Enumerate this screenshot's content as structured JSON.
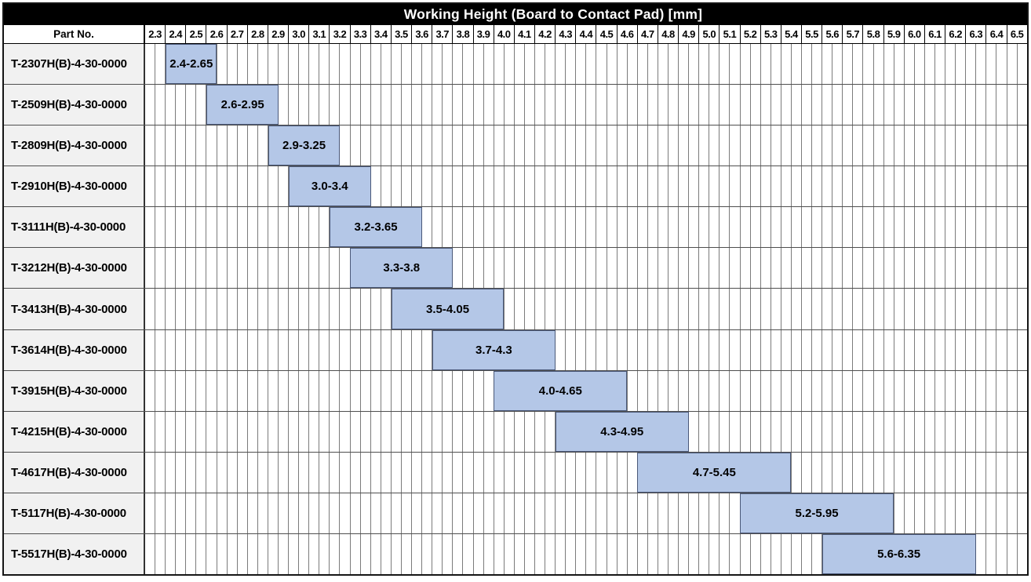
{
  "chart_data": {
    "type": "bar",
    "subtype": "horizontal-range-gantt",
    "title": "Working Height (Board to Contact Pad) [mm]",
    "part_no_header": "Part No.",
    "legend": "none",
    "grid": "on",
    "axis": {
      "unit": "mm",
      "min": 2.3,
      "max": 6.6,
      "major_step": 0.1,
      "minor_step": 0.05,
      "tick_labels": [
        "2.3",
        "2.4",
        "2.5",
        "2.6",
        "2.7",
        "2.8",
        "2.9",
        "3.0",
        "3.1",
        "3.2",
        "3.3",
        "3.4",
        "3.5",
        "3.6",
        "3.7",
        "3.8",
        "3.9",
        "4.0",
        "4.1",
        "4.2",
        "4.3",
        "4.4",
        "4.5",
        "4.6",
        "4.7",
        "4.8",
        "4.9",
        "5.0",
        "5.1",
        "5.2",
        "5.3",
        "5.4",
        "5.5",
        "5.6",
        "5.7",
        "5.8",
        "5.9",
        "6.0",
        "6.1",
        "6.2",
        "6.3",
        "6.4",
        "6.5"
      ]
    },
    "rows": [
      {
        "part_no": "T-2307H(B)-4-30-0000",
        "range_start": 2.4,
        "range_end": 2.65,
        "bar_label": "2.4-2.65"
      },
      {
        "part_no": "T-2509H(B)-4-30-0000",
        "range_start": 2.6,
        "range_end": 2.95,
        "bar_label": "2.6-2.95"
      },
      {
        "part_no": "T-2809H(B)-4-30-0000",
        "range_start": 2.9,
        "range_end": 3.25,
        "bar_label": "2.9-3.25"
      },
      {
        "part_no": "T-2910H(B)-4-30-0000",
        "range_start": 3.0,
        "range_end": 3.4,
        "bar_label": "3.0-3.4"
      },
      {
        "part_no": "T-3111H(B)-4-30-0000",
        "range_start": 3.2,
        "range_end": 3.65,
        "bar_label": "3.2-3.65"
      },
      {
        "part_no": "T-3212H(B)-4-30-0000",
        "range_start": 3.3,
        "range_end": 3.8,
        "bar_label": "3.3-3.8"
      },
      {
        "part_no": "T-3413H(B)-4-30-0000",
        "range_start": 3.5,
        "range_end": 4.05,
        "bar_label": "3.5-4.05"
      },
      {
        "part_no": "T-3614H(B)-4-30-0000",
        "range_start": 3.7,
        "range_end": 4.3,
        "bar_label": "3.7-4.3"
      },
      {
        "part_no": "T-3915H(B)-4-30-0000",
        "range_start": 4.0,
        "range_end": 4.65,
        "bar_label": "4.0-4.65"
      },
      {
        "part_no": "T-4215H(B)-4-30-0000",
        "range_start": 4.3,
        "range_end": 4.95,
        "bar_label": "4.3-4.95"
      },
      {
        "part_no": "T-4617H(B)-4-30-0000",
        "range_start": 4.7,
        "range_end": 5.45,
        "bar_label": "4.7-5.45"
      },
      {
        "part_no": "T-5117H(B)-4-30-0000",
        "range_start": 5.2,
        "range_end": 5.95,
        "bar_label": "5.2-5.95"
      },
      {
        "part_no": "T-5517H(B)-4-30-0000",
        "range_start": 5.6,
        "range_end": 6.35,
        "bar_label": "5.6-6.35"
      }
    ],
    "colors": {
      "bar_fill": "#b4c7e7",
      "bar_border": "#4a5878",
      "title_bg": "#000000",
      "title_text": "#ffffff",
      "part_cell_bg": "#f1f1f1",
      "minor_grid_line": "#7b7b7b",
      "row_separator": "#4f4f4f",
      "header_border": "#000000"
    }
  }
}
